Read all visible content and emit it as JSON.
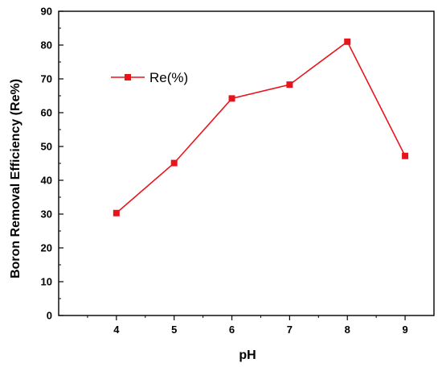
{
  "chart_data": {
    "type": "line",
    "title": "",
    "xlabel": "pH",
    "ylabel": "Boron Removal Efficiency (Re%)",
    "x": [
      4,
      5,
      6,
      7,
      8,
      9
    ],
    "xticks": [
      "4",
      "5",
      "6",
      "7",
      "8",
      "9"
    ],
    "yticks": [
      "0",
      "10",
      "20",
      "30",
      "40",
      "50",
      "60",
      "70",
      "80",
      "90"
    ],
    "xlim": [
      3,
      9.5
    ],
    "ylim": [
      0,
      90
    ],
    "grid": false,
    "legend_position": "top-left",
    "series": [
      {
        "name": "Re(%)",
        "color": "#e8141c",
        "marker": "square",
        "values": [
          30.3,
          45.1,
          64.2,
          68.3,
          81.0,
          47.2
        ]
      }
    ]
  }
}
